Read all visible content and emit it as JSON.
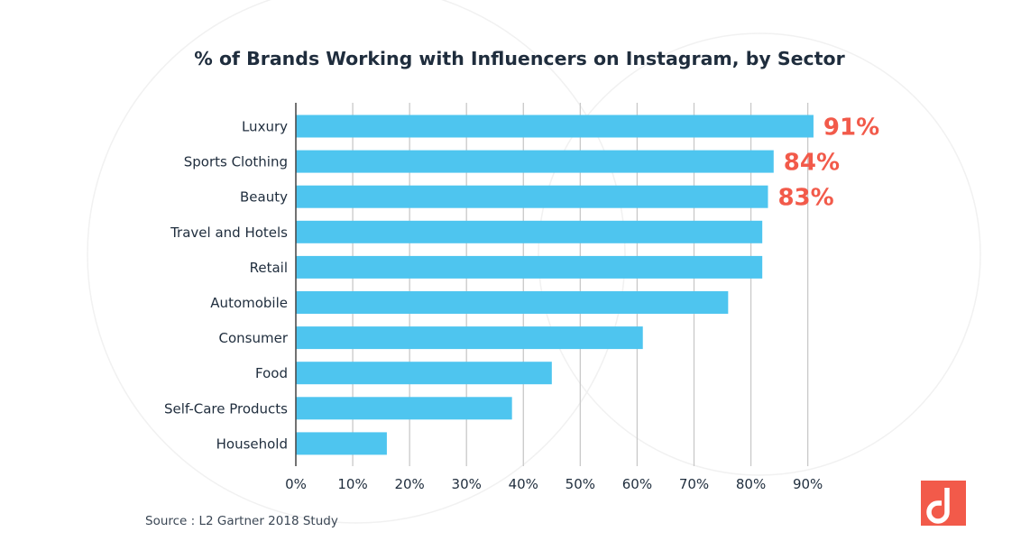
{
  "chart_data": {
    "type": "bar",
    "orientation": "horizontal",
    "title": "% of Brands Working with Influencers on Instagram, by Sector",
    "categories": [
      "Luxury",
      "Sports Clothing",
      "Beauty",
      "Travel and Hotels",
      "Retail",
      "Automobile",
      "Consumer",
      "Food",
      "Self-Care Products",
      "Household"
    ],
    "values": [
      91,
      84,
      83,
      82,
      82,
      76,
      61,
      45,
      38,
      16
    ],
    "data_labels": [
      "91%",
      "84%",
      "83%",
      "",
      "",
      "",
      "",
      "",
      "",
      ""
    ],
    "xlim": [
      0,
      90
    ],
    "xticks": [
      0,
      10,
      20,
      30,
      40,
      50,
      60,
      70,
      80,
      90
    ],
    "xtick_labels": [
      "0%",
      "10%",
      "20%",
      "30%",
      "40%",
      "50%",
      "60%",
      "70%",
      "80%",
      "90%"
    ],
    "xlabel": "",
    "ylabel": "",
    "grid": true,
    "colors": {
      "bar": "#4ec5ef",
      "highlight_label": "#f25a4a",
      "grid": "#c9c9c9",
      "logo": "#f25a4a"
    }
  },
  "source": "Source : L2 Gartner 2018 Study",
  "logo": {
    "icon": "brand-logo-icon",
    "glyph": "d"
  }
}
